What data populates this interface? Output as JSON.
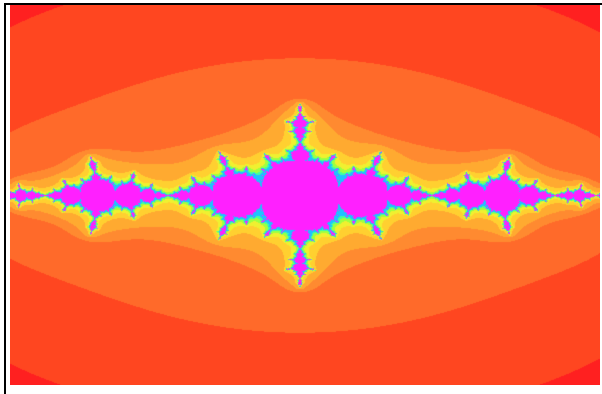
{
  "viewer": {
    "image_name": "julia-set-icon",
    "palette": {
      "outer": "#ff2020",
      "band_1": "#ff4620",
      "band_2": "#ff6a2a",
      "band_3": "#ff8a30",
      "band_4": "#ffaa30",
      "band_5": "#ffd030",
      "band_6": "#f0f030",
      "band_7": "#a0ff40",
      "band_8": "#40ffa0",
      "band_9": "#20c0ff",
      "interior": "#ff20ff"
    },
    "julia_constant": {
      "re": -1.25,
      "im": 0.0
    },
    "max_iterations": 60
  }
}
